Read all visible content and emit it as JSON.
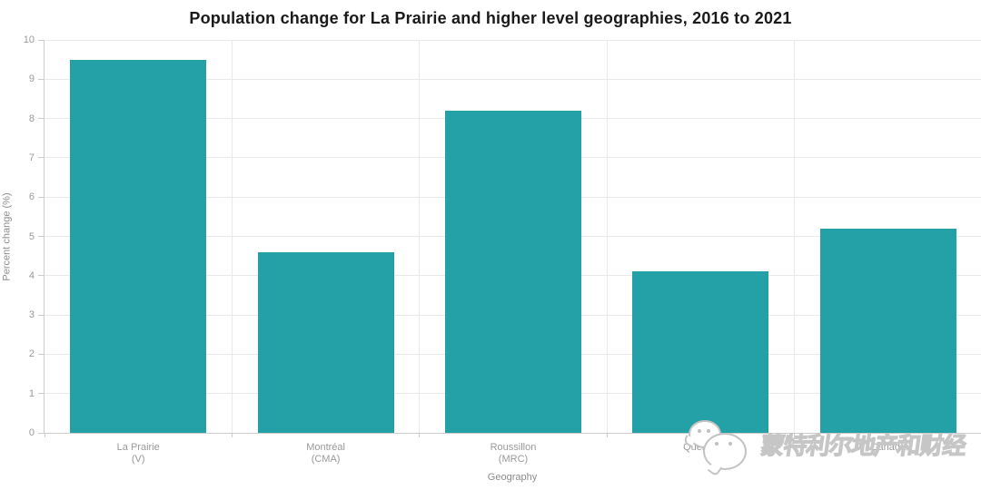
{
  "chart_data": {
    "type": "bar",
    "title": "Population change for La Prairie and higher level geographies, 2016 to 2021",
    "categories": [
      [
        "La Prairie",
        "(V)"
      ],
      [
        "Montréal",
        "(CMA)"
      ],
      [
        "Roussillon",
        "(MRC)"
      ],
      [
        "Québec"
      ],
      [
        "Canada"
      ]
    ],
    "values": [
      9.5,
      4.6,
      8.2,
      4.1,
      5.2
    ],
    "xlabel": "Geography",
    "ylabel": "Percent change (%)",
    "ylim": [
      0,
      10
    ],
    "ytick_step": 1,
    "grid": true,
    "legend": false,
    "colors": {
      "bar": "#23a1a7",
      "gridline": "#e9e9e9",
      "axis_line": "#cccccc",
      "tick_label": "#999999",
      "axis_title": "#8c8c8c",
      "title": "#1a1a1a"
    }
  },
  "watermark": {
    "icon": "wechat-logo-icon",
    "text": "蒙特利尔地产和财经"
  }
}
